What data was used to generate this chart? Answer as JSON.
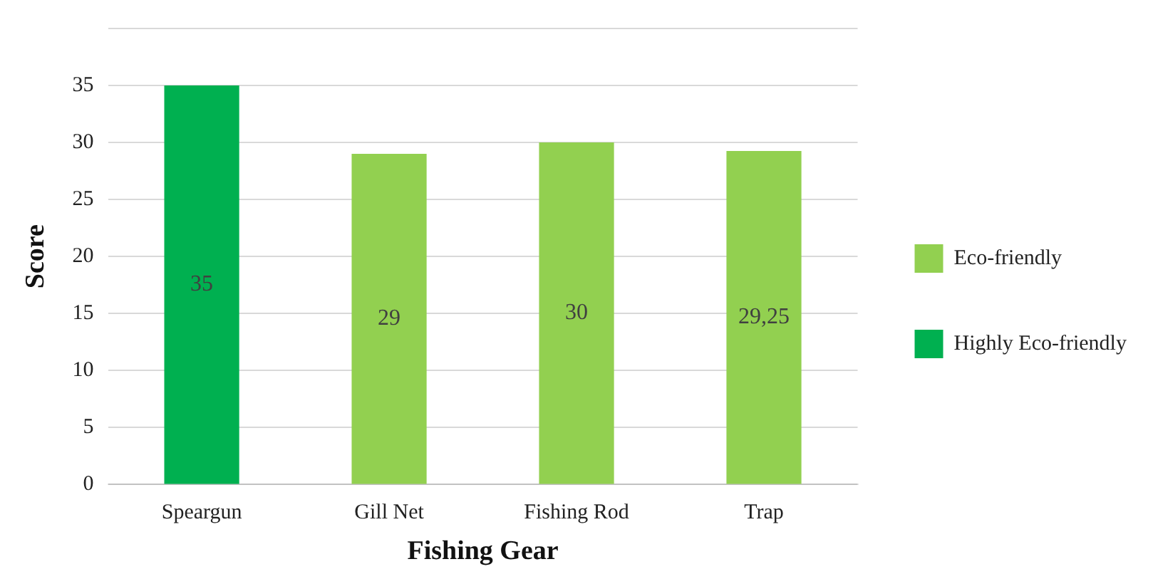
{
  "chart_data": {
    "type": "bar",
    "xlabel": "Fishing Gear",
    "ylabel": "Score",
    "categories": [
      "Speargun",
      "Gill Net",
      "Fishing Rod",
      "Trap"
    ],
    "series": [
      {
        "name": "Eco-friendly",
        "color": "#92d050",
        "values": [
          null,
          29,
          30,
          29.25
        ],
        "value_labels": [
          null,
          "29",
          "30",
          "29,25"
        ]
      },
      {
        "name": "Highly Eco-friendly",
        "color": "#00b050",
        "values": [
          35,
          null,
          null,
          null
        ],
        "value_labels": [
          "35",
          null,
          null,
          null
        ]
      }
    ],
    "ylim": [
      0,
      40
    ],
    "yticks": [
      0,
      5,
      10,
      15,
      20,
      25,
      30,
      35,
      {
        "value": 40,
        "label": null
      }
    ],
    "grid": "y",
    "legend": "right"
  }
}
